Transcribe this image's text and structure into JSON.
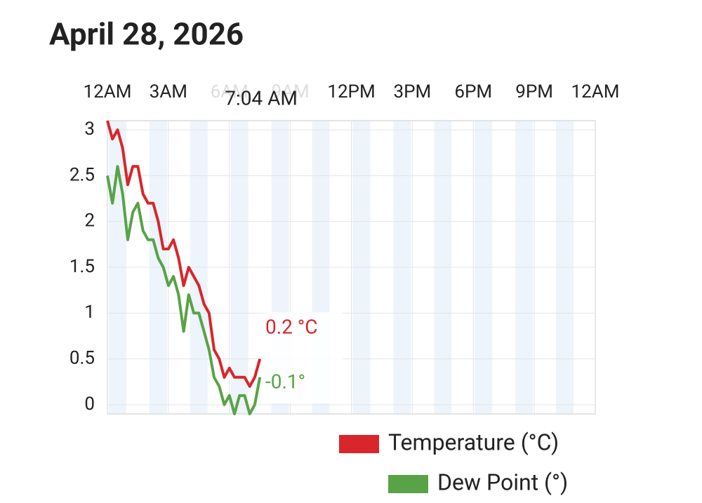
{
  "chart_data": {
    "type": "line",
    "title": "April 28, 2026",
    "x": [
      0,
      0.25,
      0.5,
      0.75,
      1,
      1.25,
      1.5,
      1.75,
      2,
      2.25,
      2.5,
      2.75,
      3,
      3.25,
      3.5,
      3.75,
      4,
      4.25,
      4.5,
      4.75,
      5,
      5.25,
      5.5,
      5.75,
      6,
      6.25,
      6.5,
      6.75,
      7,
      7.25,
      7.5
    ],
    "series": [
      {
        "name": "Temperature (°C)",
        "color": "#d8262b",
        "values": [
          3.1,
          2.9,
          3.0,
          2.8,
          2.4,
          2.6,
          2.6,
          2.3,
          2.2,
          2.2,
          2.0,
          1.7,
          1.7,
          1.8,
          1.6,
          1.3,
          1.5,
          1.4,
          1.3,
          1.1,
          1.0,
          0.6,
          0.5,
          0.3,
          0.4,
          0.3,
          0.3,
          0.3,
          0.2,
          0.3,
          0.5
        ]
      },
      {
        "name": "Dew Point (°)",
        "color": "#58a346",
        "values": [
          2.5,
          2.2,
          2.6,
          2.3,
          1.8,
          2.1,
          2.2,
          1.9,
          1.8,
          1.8,
          1.6,
          1.5,
          1.3,
          1.4,
          1.2,
          0.8,
          1.2,
          1.0,
          1.0,
          0.8,
          0.6,
          0.3,
          0.2,
          0.0,
          0.1,
          -0.1,
          0.1,
          0.1,
          -0.1,
          0.0,
          0.3
        ]
      }
    ],
    "xlim": [
      0,
      24
    ],
    "xticks": [
      {
        "value": 0,
        "label": "12AM"
      },
      {
        "value": 3,
        "label": "3AM"
      },
      {
        "value": 6,
        "label": "6AM"
      },
      {
        "value": 9,
        "label": "9AM"
      },
      {
        "value": 12,
        "label": "12PM"
      },
      {
        "value": 15,
        "label": "3PM"
      },
      {
        "value": 18,
        "label": "6PM"
      },
      {
        "value": 21,
        "label": "9PM"
      },
      {
        "value": 24,
        "label": "12AM"
      }
    ],
    "ylim": [
      -0.1,
      3.1
    ],
    "yticks": [
      0,
      0.5,
      1,
      1.5,
      2,
      2.5,
      3
    ],
    "grid": true,
    "tooltip": {
      "time": "7:04 AM",
      "labels": [
        "0.2 °C",
        "-0.1°"
      ]
    }
  }
}
